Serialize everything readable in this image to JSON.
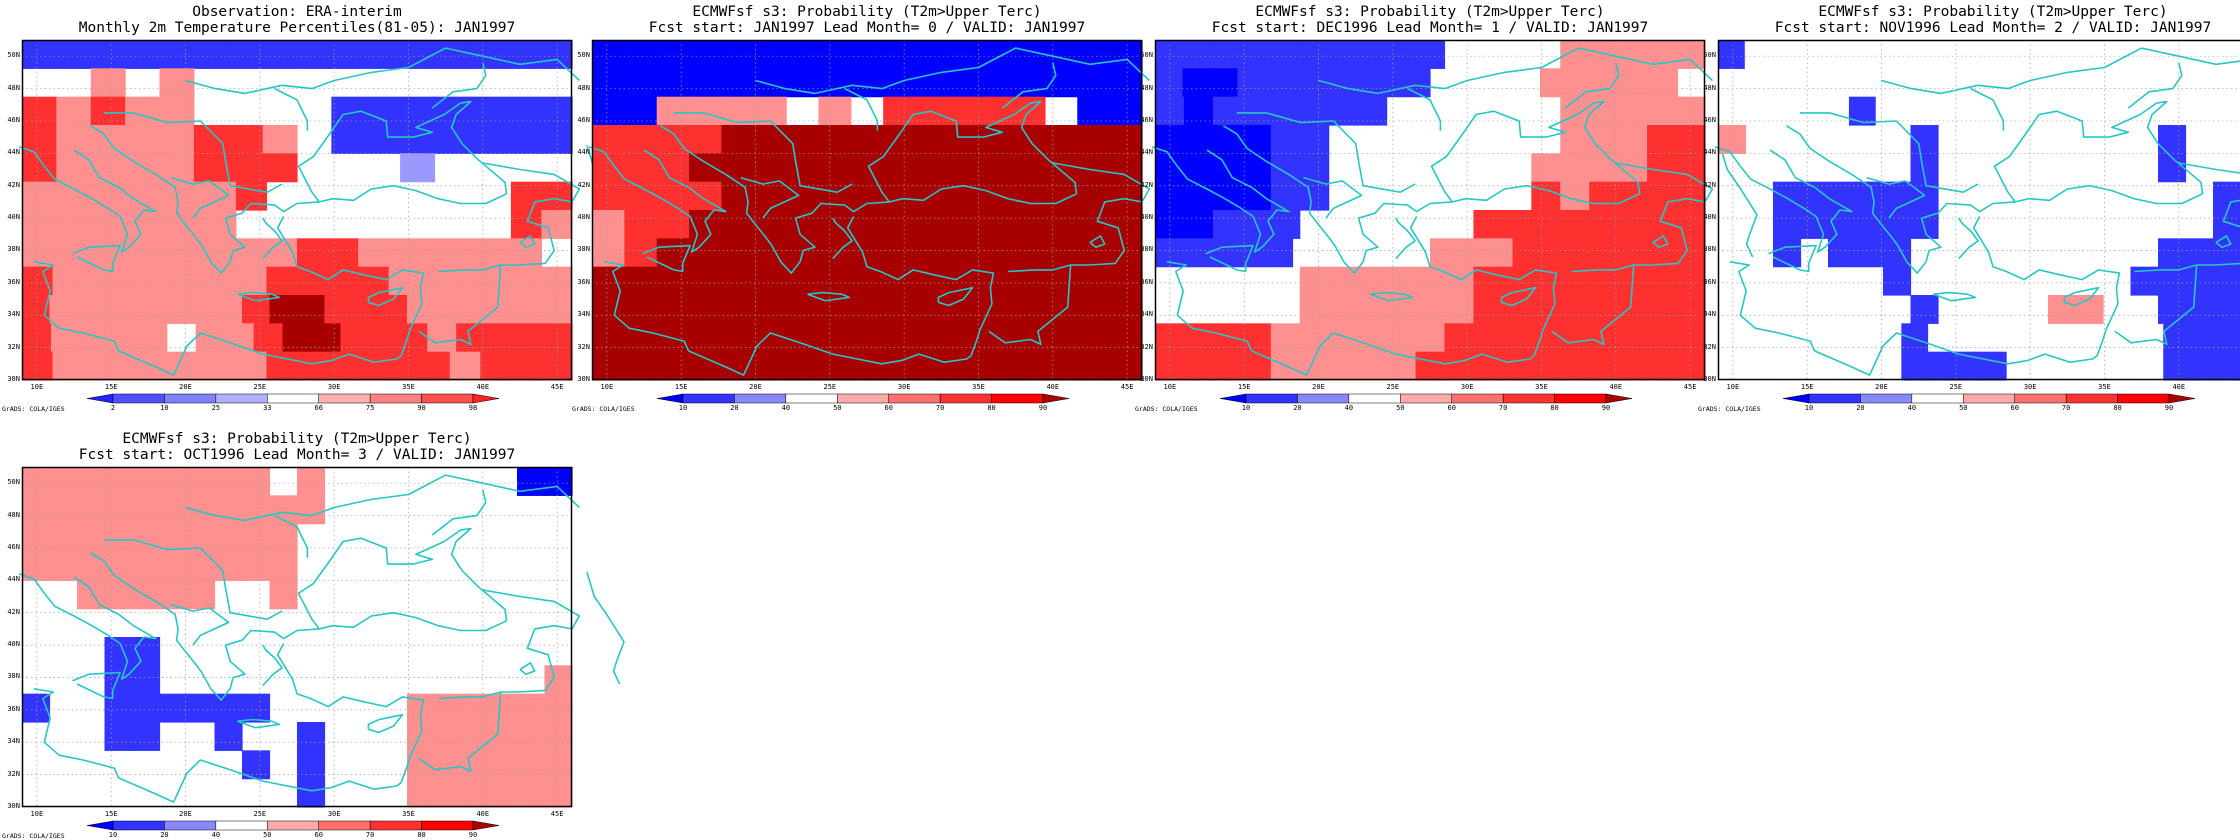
{
  "credit": "GrADS: COLA/IGES",
  "lat_labels": [
    "50N",
    "48N",
    "46N",
    "44N",
    "42N",
    "40N",
    "38N",
    "36N",
    "34N",
    "32N",
    "30N"
  ],
  "lon_labels": [
    "10E",
    "15E",
    "20E",
    "25E",
    "30E",
    "35E",
    "40E",
    "45E"
  ],
  "colors": {
    "map_border": "#000000",
    "coast": "#26c6c6",
    "grid": "#a0a0a0"
  },
  "panels": [
    {
      "title_line1": "Observation: ERA-interim",
      "title_line2": "Monthly 2m Temperature Percentiles(81-05): JAN1997",
      "colorbar_labels": [
        "2",
        "10",
        "25",
        "33",
        "66",
        "75",
        "90",
        "98"
      ],
      "colorbar_colors": [
        "#2222ff",
        "#5050ff",
        "#8080ff",
        "#b0b0ff",
        "#ffffff",
        "#ffb0b0",
        "#ff8080",
        "#ff5050",
        "#ff2222"
      ]
    },
    {
      "title_line1": "ECMWFsf s3: Probability (T2m>Upper Terc)",
      "title_line2": "Fcst start: JAN1997   Lead Month= 0 / VALID: JAN1997",
      "colorbar_labels": [
        "10",
        "20",
        "40",
        "50",
        "60",
        "70",
        "80",
        "90"
      ],
      "colorbar_colors": [
        "#0000ff",
        "#3333ff",
        "#8888ff",
        "#ffffff",
        "#ffaaaa",
        "#ff7070",
        "#ff3030",
        "#ff0000",
        "#aa0000"
      ]
    },
    {
      "title_line1": "ECMWFsf s3: Probability (T2m>Upper Terc)",
      "title_line2": "Fcst start: DEC1996   Lead Month= 1 / VALID: JAN1997",
      "colorbar_labels": [
        "10",
        "20",
        "40",
        "50",
        "60",
        "70",
        "80",
        "90"
      ],
      "colorbar_colors": [
        "#0000ff",
        "#3333ff",
        "#8888ff",
        "#ffffff",
        "#ffaaaa",
        "#ff7070",
        "#ff3030",
        "#ff0000",
        "#aa0000"
      ]
    },
    {
      "title_line1": "ECMWFsf s3: Probability (T2m>Upper Terc)",
      "title_line2": "Fcst start: NOV1996   Lead Month= 2 / VALID: JAN1997",
      "colorbar_labels": [
        "10",
        "20",
        "40",
        "50",
        "60",
        "70",
        "80",
        "90"
      ],
      "colorbar_colors": [
        "#0000ff",
        "#3333ff",
        "#8888ff",
        "#ffffff",
        "#ffaaaa",
        "#ff7070",
        "#ff3030",
        "#ff0000",
        "#aa0000"
      ]
    },
    {
      "title_line1": "ECMWFsf s3: Probability (T2m>Upper Terc)",
      "title_line2": "Fcst start: OCT1996   Lead Month= 3 / VALID: JAN1997",
      "colorbar_labels": [
        "10",
        "20",
        "40",
        "50",
        "60",
        "70",
        "80",
        "90"
      ],
      "colorbar_colors": [
        "#0000ff",
        "#3333ff",
        "#8888ff",
        "#ffffff",
        "#ffaaaa",
        "#ff7070",
        "#ff3030",
        "#ff0000",
        "#aa0000"
      ]
    }
  ],
  "grids": [
    [
      "BBBBBBBBBBBBBBBB",
      "WWPWPWWWWWWWWWWW",
      "RPRPPWWWWBBBBBBX",
      "RPPPPRRPWBBBBBBX",
      "RPPPPRRRWWWUWWWW",
      "PPPPPPPRWWWWWWWWRR",
      "PPPPPPPWWWWWWWWWRP",
      "PPPPPPPPPRRPPPPPPW",
      "RPPPPPPPRRRRPPPPPP",
      "RPPPPPPPRKKRRRPPPPPP",
      "RPPPPWPPRKKRRRPRRRR",
      "RPPPPPPPRRRRRRPRRR"
    ],
    [
      "AAAAAAAAAAAAAAAAA",
      "AAAAAAAAAAAAAAAAA",
      "AAPPPPWPWRRRRRWAA",
      "RRRRKKKKKKKKKKKKK",
      "RRRKKKKKKKKKKKKKK",
      "RRRRKKKKKKKKKKKKK",
      "PRRKKKKKKKKKKKKKK",
      "PRKKKKKKKKKKKKKKK",
      "KKKKKKKKKKKKKKKKK",
      "KKKKKKKKKKKKKKKKK",
      "KKKKKKKKKKKKKKKKK",
      "KKKKKKKKKKKKKKKKK"
    ],
    [
      "BBBBBBBBBBWWWWPPPPP",
      "BAABBBBBBBWWWWPPPPPW",
      "BABBBBBBWWWWWWPPPPP",
      "AAAABBWWWWWWWWPPPRR",
      "AAAABBWWWWWWWPPPPRR",
      "AAAABBWWWWWWWRPRRRR",
      "AABBBWWWWWWRRRRRRRR",
      "BBBBBWWWWWPPPRRRRRRR",
      "WWWWWPPPPPPRRRRRRRR",
      "WWWWWPPPPPPRRRRRRRR",
      "RRRRPPPPPPRRRRRRRRR",
      "RRRRPPPPPRRRRRRRRRR"
    ],
    [
      "BWWWWWWWWWWWWWWWWWWWW",
      "WWWWWWWWWWWWWWWWWWWWW",
      "WWWWWBWWWWWWWWWWWWWWW",
      "PWWWWWWBWWWWWWWWBWWP",
      "WWWWWWWBWWWWWWWWBWWW",
      "WWBBBBBBWWWWWWWWWWBW",
      "WWBBBBBBWWWWWWWWWWBW",
      "WWBWBBBWWWWWWWWWBBBW",
      "WWWWWWBWWWWWWWWBBBBW",
      "WWWWWWWBWWWWPPWWBBBW",
      "WWWWWWWBWWWWWWWWWBBBB",
      "WWWWWWWBBBBWWWWWWBBBB"
    ],
    [
      "PPPPPPPPPWPWWWWWWWAA",
      "PPPPPPPPPPPWWWWWWWWW",
      "PPPPPPPPPPWWWWWWWWWW",
      "PPPPPPPPPPWWWWWWWWWW",
      "WWPPPPPWWPWWWWWWWWWW",
      "WWWWWWWWWWWWWWWWWWWW",
      "WWWBBWWWWWWWWWWWWWWW",
      "WWWBBWWWWWWWWWWWWWWP",
      "BWWBBBBBBWWWWWPPPPPP",
      "WWWBBWWBWWBWWWPPPPPP",
      "WWWWWWWWBWBWWWPPPPPP",
      "WWWWWWWWWWBWWWPPPPPP"
    ]
  ],
  "grid_palette": {
    "A": "#0000ff",
    "B": "#3333ff",
    "U": "#9999ff",
    "W": "#ffffff",
    "P": "#ff9090",
    "R": "#ff3030",
    "X": "#3333ff",
    "K": "#a80000"
  }
}
